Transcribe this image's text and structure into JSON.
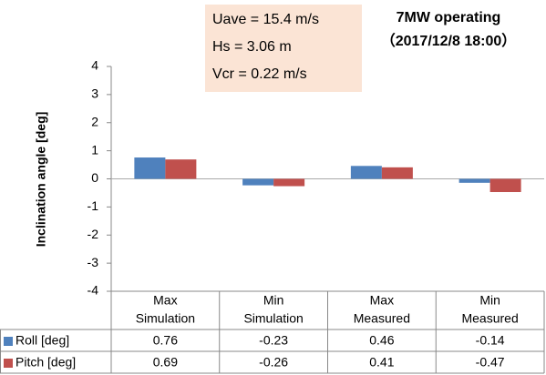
{
  "chart_data": {
    "type": "bar",
    "title": "7MW operating",
    "subtitle": "（2017/12/8 18:00）",
    "annotation": [
      "Uave = 15.4 m/s",
      "Hs = 3.06 m",
      "Vcr = 0.22 m/s"
    ],
    "ylabel": "Inclination angle [deg]",
    "categories": [
      [
        "Max",
        "Simulation"
      ],
      [
        "Min",
        "Simulation"
      ],
      [
        "Max",
        "Measured"
      ],
      [
        "Min",
        "Measured"
      ]
    ],
    "series": [
      {
        "name": "Roll [deg]",
        "color": "#4f81bd",
        "values": [
          0.76,
          -0.23,
          0.46,
          -0.14
        ]
      },
      {
        "name": "Pitch [deg]",
        "color": "#c0504d",
        "values": [
          0.69,
          -0.26,
          0.41,
          -0.47
        ]
      }
    ],
    "ylim": [
      -4,
      4
    ],
    "yticks": [
      -4,
      -3,
      -2,
      -1,
      0,
      1,
      2,
      3,
      4
    ]
  }
}
